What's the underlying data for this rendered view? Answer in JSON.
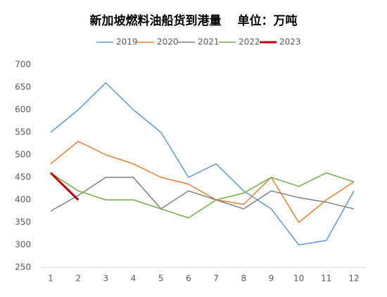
{
  "chart_data": {
    "type": "line",
    "title": "新加坡燃料油船货到港量　 单位：万吨",
    "categories": [
      "1",
      "2",
      "3",
      "4",
      "5",
      "6",
      "7",
      "8",
      "9",
      "10",
      "11",
      "12"
    ],
    "series": [
      {
        "name": "2019",
        "color": "#5b9bd5",
        "width": 1.5,
        "values": [
          550,
          600,
          660,
          600,
          550,
          450,
          480,
          420,
          380,
          300,
          310,
          420
        ]
      },
      {
        "name": "2020",
        "color": "#ed7d31",
        "width": 1.5,
        "values": [
          480,
          530,
          500,
          480,
          450,
          435,
          400,
          390,
          450,
          350,
          400,
          440
        ]
      },
      {
        "name": "2021",
        "color": "#7f7f7f",
        "width": 1.5,
        "values": [
          375,
          410,
          450,
          450,
          380,
          420,
          400,
          380,
          420,
          405,
          395,
          380
        ]
      },
      {
        "name": "2022",
        "color": "#70ad47",
        "width": 1.5,
        "values": [
          460,
          420,
          400,
          400,
          380,
          360,
          400,
          415,
          450,
          430,
          460,
          440
        ]
      },
      {
        "name": "2023",
        "color": "#c00000",
        "width": 3,
        "values": [
          460,
          400,
          null,
          null,
          null,
          null,
          null,
          null,
          null,
          null,
          null,
          null
        ]
      }
    ],
    "ylim": [
      250,
      700
    ],
    "yticks": [
      250,
      300,
      350,
      400,
      450,
      500,
      550,
      600,
      650,
      700
    ],
    "grid": false,
    "legend": "top"
  }
}
